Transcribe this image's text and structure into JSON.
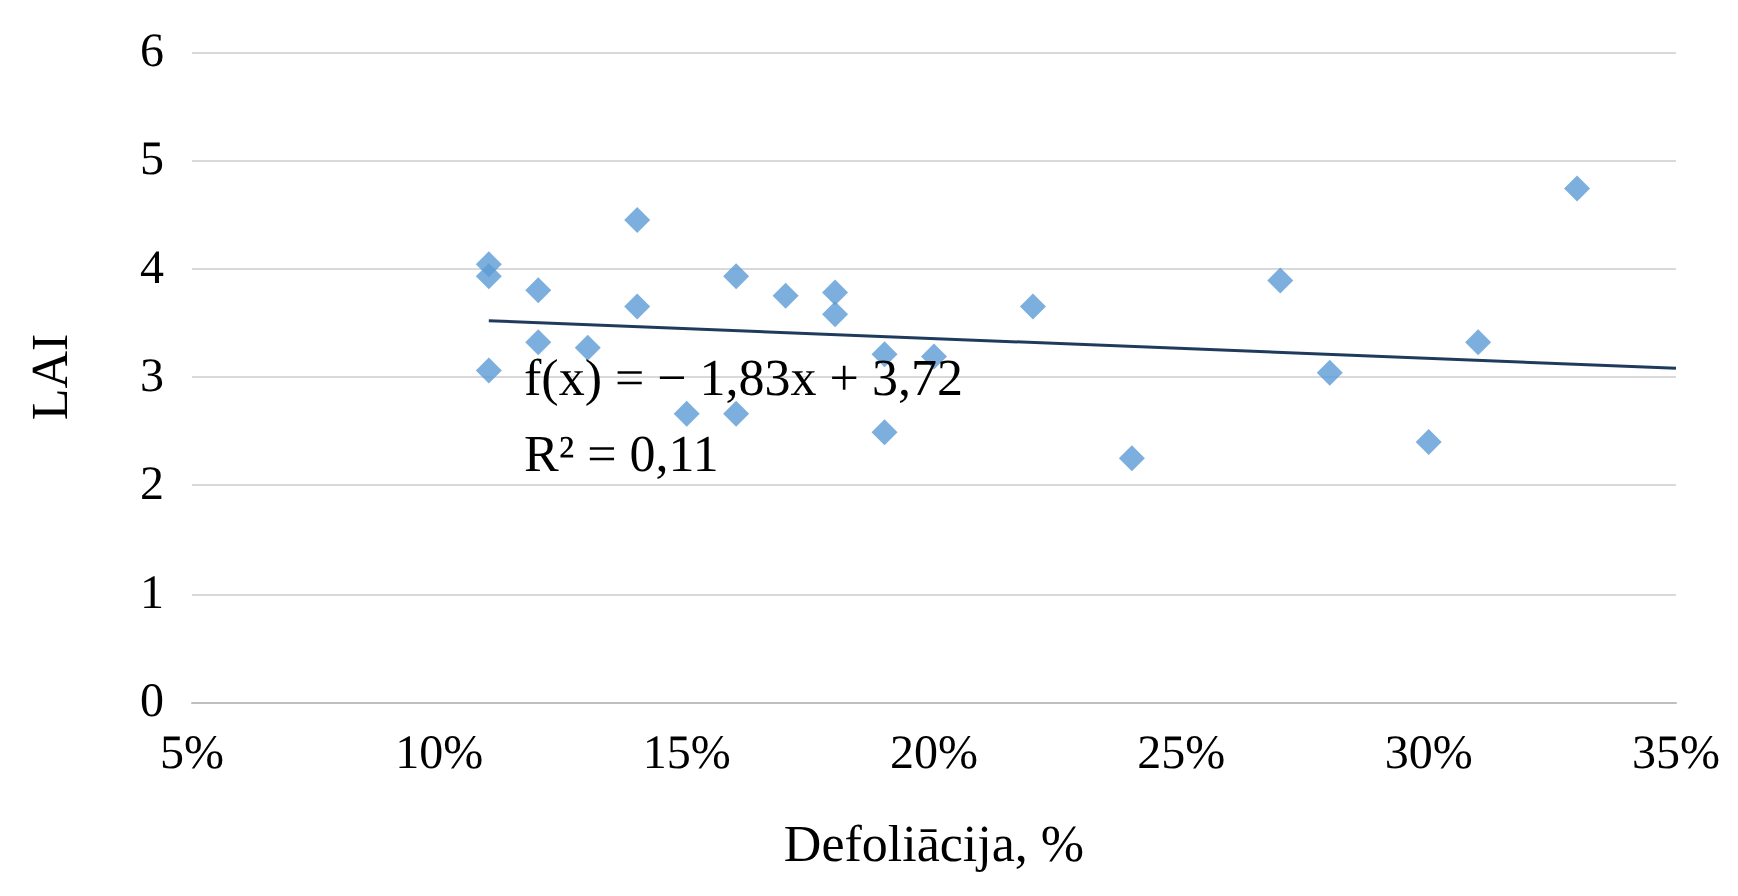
{
  "chart_data": {
    "type": "scatter",
    "xlabel": "Defoliācija, %",
    "ylabel": "LAI",
    "annotations": [
      "f(x) = − 1,83x + 3,72",
      "R² = 0,11"
    ],
    "xlim": [
      5,
      35
    ],
    "xticks": [
      {
        "value": 5,
        "label": "5%"
      },
      {
        "value": 10,
        "label": "10%"
      },
      {
        "value": 15,
        "label": "15%"
      },
      {
        "value": 20,
        "label": "20%"
      },
      {
        "value": 25,
        "label": "25%"
      },
      {
        "value": 30,
        "label": "30%"
      },
      {
        "value": 35,
        "label": "35%"
      }
    ],
    "ylim": [
      0,
      6
    ],
    "yticks": [
      0,
      1,
      2,
      3,
      4,
      5,
      6
    ],
    "grid": "y",
    "marker": "diamond",
    "series": [
      {
        "type": "scatter",
        "color": "#5b9bd5",
        "x": [
          11,
          11,
          11,
          12,
          12,
          13,
          14,
          14,
          15,
          16,
          16,
          17,
          18,
          18,
          19,
          19,
          20,
          22,
          24,
          27,
          28,
          30,
          31,
          33
        ],
        "values": [
          4.04,
          3.93,
          3.06,
          3.8,
          3.32,
          3.27,
          4.45,
          3.65,
          2.66,
          3.93,
          2.66,
          3.75,
          3.78,
          3.58,
          3.21,
          2.49,
          3.19,
          3.65,
          2.25,
          3.89,
          3.04,
          2.4,
          3.32,
          4.74
        ]
      },
      {
        "type": "line",
        "color": "#1f3b5c",
        "line_style": "solid",
        "marker": "none",
        "x": [
          11,
          35
        ],
        "values": [
          3.52,
          3.08
        ]
      }
    ]
  }
}
